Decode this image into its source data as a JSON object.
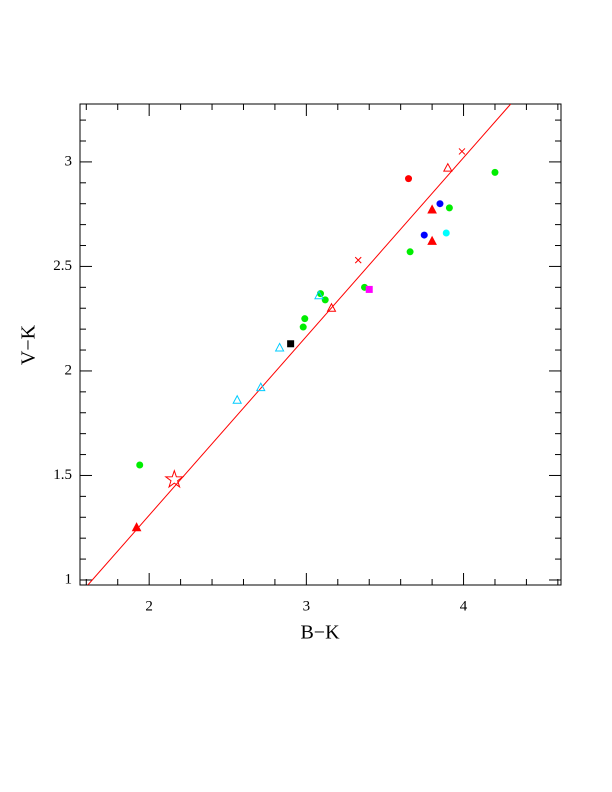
{
  "chart_data": {
    "type": "scatter",
    "xlabel": "B−K",
    "ylabel": "V−K",
    "xlim": [
      1.56,
      4.62
    ],
    "ylim": [
      0.976,
      3.277
    ],
    "xticks": [
      2,
      3,
      4
    ],
    "yticks": [
      1,
      1.5,
      2,
      2.5,
      3
    ],
    "xminorticks": [
      1.6,
      1.8,
      2.2,
      2.4,
      2.6,
      2.8,
      3.2,
      3.4,
      3.6,
      3.8,
      4.2,
      4.4,
      4.6
    ],
    "yminorticks": [
      1.1,
      1.2,
      1.3,
      1.4,
      1.6,
      1.7,
      1.8,
      1.9,
      2.1,
      2.2,
      2.3,
      2.4,
      2.6,
      2.7,
      2.8,
      2.9,
      3.1,
      3.2
    ],
    "line": {
      "color": "#ff0000",
      "x": [
        1.61,
        4.3
      ],
      "y": [
        0.976,
        3.277
      ]
    },
    "series": [
      {
        "marker": "circle",
        "color": "#00ee00",
        "x": [
          1.94,
          2.99,
          2.98,
          3.09,
          3.12,
          3.37,
          3.66,
          3.91,
          4.2
        ],
        "y": [
          1.55,
          2.25,
          2.21,
          2.37,
          2.34,
          2.4,
          2.57,
          2.78,
          2.95
        ]
      },
      {
        "marker": "circle",
        "color": "#ff0000",
        "x": [
          3.65
        ],
        "y": [
          2.92
        ]
      },
      {
        "marker": "circle",
        "color": "#0000ff",
        "x": [
          3.75,
          3.85
        ],
        "y": [
          2.65,
          2.8
        ]
      },
      {
        "marker": "circle",
        "color": "#00ffff",
        "x": [
          3.89
        ],
        "y": [
          2.66
        ]
      },
      {
        "marker": "triangle",
        "color": "#ff0000",
        "x": [
          1.92,
          3.8,
          3.8
        ],
        "y": [
          1.25,
          2.77,
          2.62
        ]
      },
      {
        "marker": "open-triangle",
        "color": "#ff0000",
        "x": [
          3.16,
          3.9
        ],
        "y": [
          2.3,
          2.97
        ]
      },
      {
        "marker": "open-triangle",
        "color": "#00ccff",
        "x": [
          2.56,
          2.71,
          2.83,
          3.08
        ],
        "y": [
          1.86,
          1.92,
          2.11,
          2.36
        ]
      },
      {
        "marker": "square",
        "color": "#000000",
        "x": [
          2.9
        ],
        "y": [
          2.13
        ]
      },
      {
        "marker": "square",
        "color": "#ff00ff",
        "x": [
          3.4
        ],
        "y": [
          2.39
        ]
      },
      {
        "marker": "star",
        "color": "#ff0000",
        "x": [
          2.16
        ],
        "y": [
          1.48
        ]
      },
      {
        "marker": "cross",
        "color": "#ff0000",
        "x": [
          3.33,
          3.99
        ],
        "y": [
          2.53,
          3.05
        ]
      }
    ]
  }
}
